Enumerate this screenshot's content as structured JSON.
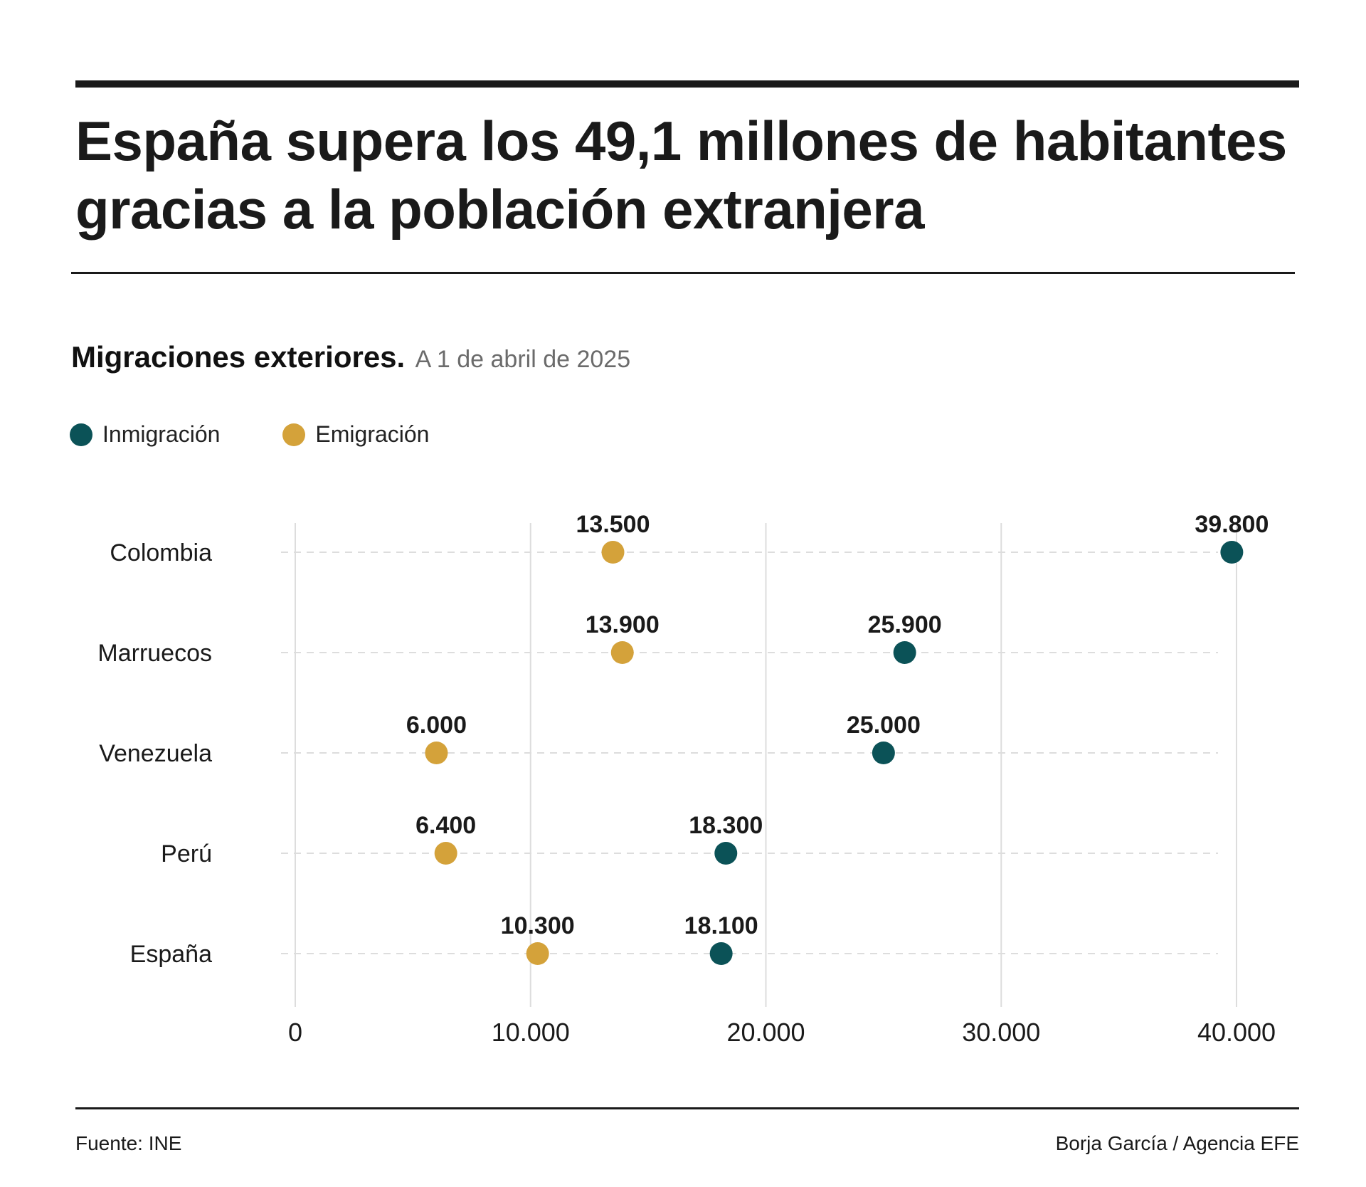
{
  "header": {
    "title_line1": "España supera los 49,1 millones de habitantes",
    "title_line2": "gracias a la población extranjera"
  },
  "subtitle": {
    "main": "Migraciones exteriores.",
    "date": "A 1 de abril de 2025"
  },
  "colors": {
    "inmigracion": "#0b5257",
    "emigracion": "#d4a23a",
    "grid": "#dddddd",
    "text": "#1a1a1a"
  },
  "legend": [
    {
      "label": "Inmigración",
      "color_key": "inmigracion",
      "icon": "teal-dot-icon"
    },
    {
      "label": "Emigración",
      "color_key": "emigracion",
      "icon": "gold-dot-icon"
    }
  ],
  "chart_data": {
    "type": "scatter",
    "subtype": "dot-plot",
    "categories": [
      "Colombia",
      "Marruecos",
      "Venezuela",
      "Perú",
      "España"
    ],
    "series": [
      {
        "name": "Inmigración",
        "color": "#0b5257",
        "values": [
          39800,
          25900,
          25000,
          18300,
          18100
        ],
        "labels": [
          "39.800",
          "25.900",
          "25.000",
          "18.300",
          "18.100"
        ]
      },
      {
        "name": "Emigración",
        "color": "#d4a23a",
        "values": [
          13500,
          13900,
          6000,
          6400,
          10300
        ],
        "labels": [
          "13.500",
          "13.900",
          "6.000",
          "6.400",
          "10.300"
        ]
      }
    ],
    "xlim": [
      0,
      40000
    ],
    "xticks": [
      0,
      10000,
      20000,
      30000,
      40000
    ],
    "xtick_labels": [
      "0",
      "10.000",
      "20.000",
      "30.000",
      "40.000"
    ],
    "grid": true,
    "legend_position": "top-left"
  },
  "footer": {
    "source": "Fuente: INE",
    "credit": "Borja García / Agencia EFE"
  }
}
